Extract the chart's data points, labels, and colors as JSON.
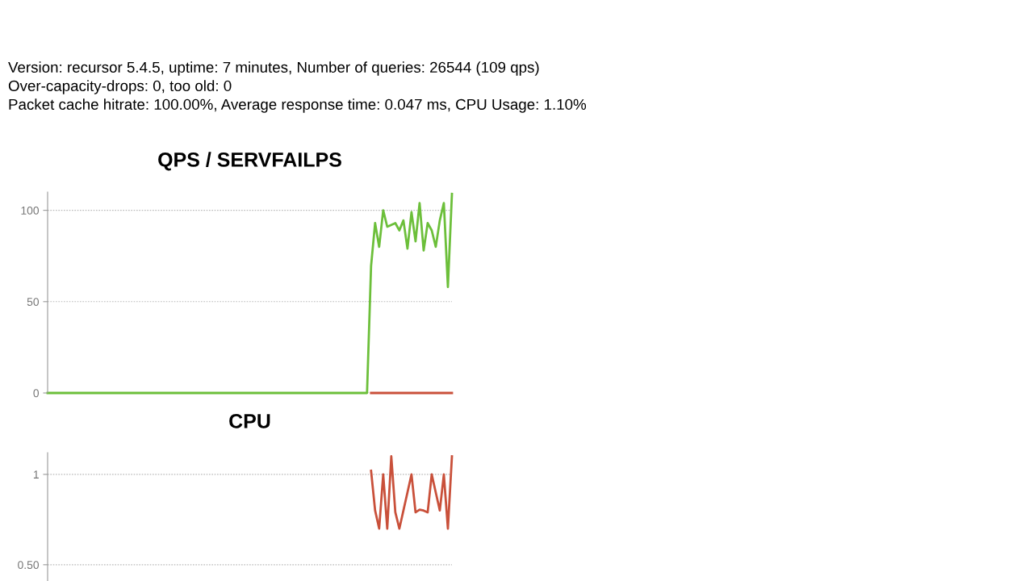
{
  "chart_data": [
    {
      "type": "line",
      "title": "QPS / SERVFAILPS",
      "annotations": [
        "Version: recursor 5.4.5, uptime: 7 minutes, Number of queries: 26544 (109 qps)",
        "Over-capacity-drops: 0, too old: 0",
        "Packet cache hitrate: 100.00%, Average response time: 0.047 ms, CPU Usage: 1.10%"
      ],
      "categories": [
        null,
        null,
        null,
        null,
        null,
        null,
        null,
        null,
        null,
        null,
        null,
        null,
        null,
        null,
        null,
        null,
        null,
        null,
        null,
        null,
        null,
        null,
        null,
        null,
        null,
        null,
        null,
        null,
        null,
        null,
        null,
        null,
        null,
        null,
        null,
        null,
        null,
        null,
        null,
        null,
        null,
        null,
        null,
        null,
        null,
        null,
        null,
        null,
        null,
        null,
        null,
        null,
        null,
        null,
        null,
        null,
        null,
        null,
        null,
        null,
        null,
        null,
        null,
        null,
        null,
        null,
        null,
        null,
        null,
        null,
        null,
        null,
        null,
        null,
        null,
        null,
        null,
        null,
        null,
        null,
        null,
        null,
        null,
        null,
        null,
        null,
        null,
        null,
        null,
        null,
        null,
        null,
        null,
        null,
        null,
        null,
        null,
        null,
        null,
        null,
        null
      ],
      "series": [
        {
          "color": "#c9503a",
          "values": [
            null,
            null,
            null,
            null,
            null,
            null,
            null,
            null,
            null,
            null,
            null,
            null,
            null,
            null,
            null,
            null,
            null,
            null,
            null,
            null,
            null,
            null,
            null,
            null,
            null,
            null,
            null,
            null,
            null,
            null,
            null,
            null,
            null,
            null,
            null,
            null,
            null,
            null,
            null,
            null,
            null,
            null,
            null,
            null,
            null,
            null,
            null,
            null,
            null,
            null,
            null,
            null,
            null,
            null,
            null,
            null,
            null,
            null,
            null,
            null,
            null,
            null,
            null,
            null,
            null,
            null,
            null,
            null,
            null,
            null,
            null,
            null,
            null,
            null,
            null,
            null,
            null,
            null,
            null,
            null,
            0,
            0,
            0,
            0,
            0,
            0,
            0,
            0,
            0,
            0,
            0,
            0,
            0,
            0,
            0,
            0,
            0,
            0,
            0,
            0,
            0
          ]
        },
        {
          "color": "#6cbf3a",
          "values": [
            0,
            0,
            0,
            0,
            0,
            0,
            0,
            0,
            0,
            0,
            0,
            0,
            0,
            0,
            0,
            0,
            0,
            0,
            0,
            0,
            0,
            0,
            0,
            0,
            0,
            0,
            0,
            0,
            0,
            0,
            0,
            0,
            0,
            0,
            0,
            0,
            0,
            0,
            0,
            0,
            0,
            0,
            0,
            0,
            0,
            0,
            0,
            0,
            0,
            0,
            0,
            0,
            0,
            0,
            0,
            0,
            0,
            0,
            0,
            0,
            0,
            0,
            0,
            0,
            0,
            0,
            0,
            0,
            0,
            0,
            0,
            0,
            0,
            0,
            0,
            0,
            0,
            0,
            0,
            0,
            69.5,
            93,
            80,
            100,
            91,
            92,
            93,
            89,
            94.5,
            79,
            99,
            83,
            104,
            78,
            93,
            89,
            80,
            94.5,
            104,
            58,
            109
          ]
        }
      ],
      "ylim": [
        0,
        110
      ],
      "yticks": [
        0,
        50,
        100
      ],
      "grid": "y",
      "tick_labels": "y",
      "line_style": "solid",
      "marker": "none"
    },
    {
      "type": "line",
      "title": "CPU",
      "categories": [
        null,
        null,
        null,
        null,
        null,
        null,
        null,
        null,
        null,
        null,
        null,
        null,
        null,
        null,
        null,
        null,
        null,
        null,
        null,
        null,
        null,
        null,
        null,
        null,
        null,
        null,
        null,
        null,
        null,
        null,
        null,
        null,
        null,
        null,
        null,
        null,
        null,
        null,
        null,
        null,
        null,
        null,
        null,
        null,
        null,
        null,
        null,
        null,
        null,
        null,
        null,
        null,
        null,
        null,
        null,
        null,
        null,
        null,
        null,
        null,
        null,
        null,
        null,
        null,
        null,
        null,
        null,
        null,
        null,
        null,
        null,
        null,
        null,
        null,
        null,
        null,
        null,
        null,
        null,
        null,
        null,
        null,
        null,
        null,
        null,
        null,
        null,
        null,
        null,
        null,
        null,
        null,
        null,
        null,
        null,
        null,
        null,
        null,
        null,
        null,
        null
      ],
      "series": [
        {
          "color": "#c9503a",
          "values": [
            null,
            null,
            null,
            null,
            null,
            null,
            null,
            null,
            null,
            null,
            null,
            null,
            null,
            null,
            null,
            null,
            null,
            null,
            null,
            null,
            null,
            null,
            null,
            null,
            null,
            null,
            null,
            null,
            null,
            null,
            null,
            null,
            null,
            null,
            null,
            null,
            null,
            null,
            null,
            null,
            null,
            null,
            null,
            null,
            null,
            null,
            null,
            null,
            null,
            null,
            null,
            null,
            null,
            null,
            null,
            null,
            null,
            null,
            null,
            null,
            null,
            null,
            null,
            null,
            null,
            null,
            null,
            null,
            null,
            null,
            null,
            null,
            null,
            null,
            null,
            null,
            null,
            null,
            null,
            null,
            1.02,
            0.8,
            0.7,
            1.0,
            0.7,
            1.1,
            0.79,
            0.7,
            0.8,
            0.9,
            1.0,
            0.79,
            0.805,
            0.8,
            0.79,
            1.0,
            0.9,
            0.8,
            1.0,
            0.7,
            1.1
          ]
        }
      ],
      "ylim": [
        0.41,
        1.12
      ],
      "yticks": [
        {
          "value": 0.5,
          "label": "0.50"
        },
        1
      ],
      "grid": "y",
      "tick_labels": "y",
      "line_style": "solid",
      "marker": "none"
    }
  ]
}
